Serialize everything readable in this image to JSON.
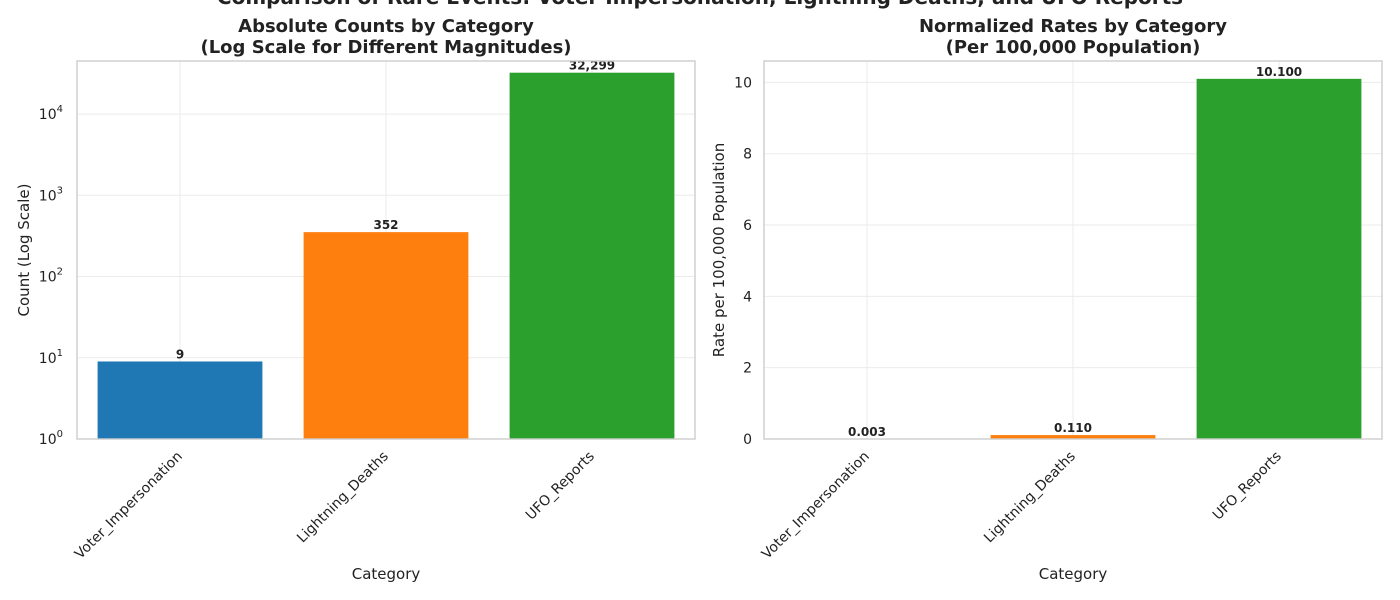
{
  "suptitle": "Comparison of Rare Events: Voter Impersonation, Lightning Deaths, and UFO Reports",
  "chart_data": [
    {
      "type": "bar",
      "title_line1": "Absolute Counts by Category",
      "title_line2": "(Log Scale for Different Magnitudes)",
      "xlabel": "Category",
      "ylabel": "Count (Log Scale)",
      "yscale": "log",
      "ylim": [
        1,
        45000
      ],
      "ytick_values": [
        1,
        10,
        100,
        1000,
        10000
      ],
      "ytick_base": "10",
      "ytick_exponents": [
        "0",
        "1",
        "2",
        "3",
        "4"
      ],
      "categories": [
        "Voter_Impersonation",
        "Lightning_Deaths",
        "UFO_Reports"
      ],
      "values": [
        9,
        352,
        32299
      ],
      "bar_labels": [
        "9",
        "352",
        "32,299"
      ],
      "colors": [
        "#1f77b4",
        "#ff7f0e",
        "#2ca02c"
      ],
      "grid": true
    },
    {
      "type": "bar",
      "title_line1": "Normalized Rates by Category",
      "title_line2": "(Per 100,000 Population)",
      "xlabel": "Category",
      "ylabel": "Rate per 100,000 Population",
      "yscale": "linear",
      "ylim": [
        0,
        10.6
      ],
      "ytick_values": [
        0,
        2,
        4,
        6,
        8,
        10
      ],
      "ytick_labels": [
        "0",
        "2",
        "4",
        "6",
        "8",
        "10"
      ],
      "categories": [
        "Voter_Impersonation",
        "Lightning_Deaths",
        "UFO_Reports"
      ],
      "values": [
        0.003,
        0.11,
        10.1
      ],
      "bar_labels": [
        "0.003",
        "0.110",
        "10.100"
      ],
      "colors": [
        "#1f77b4",
        "#ff7f0e",
        "#2ca02c"
      ],
      "grid": true
    }
  ]
}
